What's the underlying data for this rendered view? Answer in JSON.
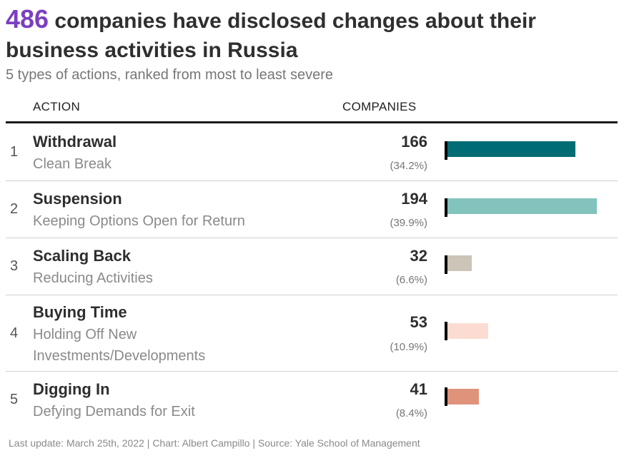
{
  "header": {
    "title_number": "486",
    "title_text": " companies have disclosed changes about their business activities in Russia",
    "subtitle": "5 types of actions, ranked from most to least severe"
  },
  "columns": {
    "action": "ACTION",
    "companies": "COMPANIES"
  },
  "chart_data": {
    "type": "bar",
    "categories": [
      "Withdrawal",
      "Suspension",
      "Scaling Back",
      "Buying Time",
      "Digging In"
    ],
    "values": [
      166,
      194,
      32,
      53,
      41
    ],
    "value_labels": [
      "166",
      "194",
      "32",
      "53",
      "41"
    ],
    "percent_labels": [
      "(34.2%)",
      "(39.9%)",
      "(6.6%)",
      "(10.9%)",
      "(8.4%)"
    ],
    "xlim": [
      0,
      194
    ],
    "orientation": "horizontal",
    "colors": [
      "#006d75",
      "#82c3bd",
      "#cbc4b7",
      "#fcdcd2",
      "#e0937b"
    ],
    "rows": [
      {
        "rank": "1",
        "name": "Withdrawal",
        "sub": "Clean Break"
      },
      {
        "rank": "2",
        "name": "Suspension",
        "sub": "Keeping Options Open for Return"
      },
      {
        "rank": "3",
        "name": "Scaling Back",
        "sub": "Reducing Activities"
      },
      {
        "rank": "4",
        "name": "Buying Time",
        "sub": "Holding Off New Investments/Developments"
      },
      {
        "rank": "5",
        "name": "Digging In",
        "sub": "Defying Demands for Exit"
      }
    ]
  },
  "footer": "Last update: March 25th, 2022 | Chart: Albert Campillo | Source: Yale School of Management"
}
